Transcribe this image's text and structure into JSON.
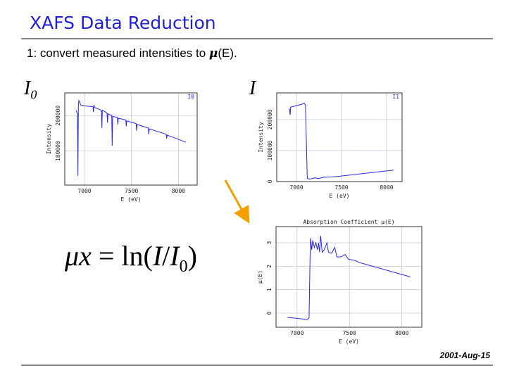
{
  "title": "XAFS Data Reduction",
  "subtitle": {
    "prefix": "1:  convert measured intensities to ",
    "mu": "μ",
    "suffix": "(E)."
  },
  "labels": {
    "i0_main": "I",
    "i0_sub": "0",
    "i": "I"
  },
  "equation": {
    "lhs": "μx",
    "eq": " = ln(",
    "i": "I",
    "slash": "/",
    "i0": "I",
    "i0_sub": "0",
    "close": ")"
  },
  "date": "2001-Aug-15",
  "colors": {
    "title": "#1f1fd6",
    "curve": "#2828e6",
    "arrow": "#f5a000",
    "grid": "#c8c8dc"
  },
  "chart_data": [
    {
      "type": "line",
      "title": "",
      "corner_label": "I0",
      "xlabel": "E (eV)",
      "ylabel": "Intensity",
      "xlim": [
        6790,
        8200
      ],
      "ylim": [
        160800,
        212800
      ],
      "xticks": [
        7000,
        7500,
        8000
      ],
      "yticks": [
        180000,
        200000
      ],
      "grid": true,
      "points": [
        [
          6910,
          203000
        ],
        [
          6925,
          201000
        ],
        [
          6930,
          166000
        ],
        [
          6935,
          206000
        ],
        [
          6940,
          208500
        ],
        [
          6960,
          206000
        ],
        [
          7000,
          205500
        ],
        [
          7090,
          205000
        ],
        [
          7095,
          202000
        ],
        [
          7100,
          206000
        ],
        [
          7110,
          204500
        ],
        [
          7180,
          203000
        ],
        [
          7185,
          193000
        ],
        [
          7190,
          203000
        ],
        [
          7240,
          201500
        ],
        [
          7245,
          196000
        ],
        [
          7250,
          201000
        ],
        [
          7290,
          200000
        ],
        [
          7295,
          183000
        ],
        [
          7300,
          199500
        ],
        [
          7350,
          199000
        ],
        [
          7355,
          195000
        ],
        [
          7360,
          198500
        ],
        [
          7440,
          197500
        ],
        [
          7445,
          194000
        ],
        [
          7450,
          197000
        ],
        [
          7550,
          195500
        ],
        [
          7555,
          191500
        ],
        [
          7560,
          195000
        ],
        [
          7680,
          193000
        ],
        [
          7685,
          189500
        ],
        [
          7690,
          192500
        ],
        [
          7870,
          189500
        ],
        [
          7875,
          187000
        ],
        [
          7880,
          189000
        ],
        [
          8080,
          185000
        ]
      ]
    },
    {
      "type": "line",
      "title": "",
      "corner_label": "I1",
      "xlabel": "E (eV)",
      "ylabel": "Intensity",
      "xlim": [
        6781,
        8172
      ],
      "ylim": [
        0,
        286000
      ],
      "xticks": [
        7000,
        7500,
        8000
      ],
      "yticks": [
        0,
        100000,
        200000
      ],
      "grid": true,
      "points": [
        [
          6920,
          236000
        ],
        [
          6930,
          215000
        ],
        [
          6935,
          240000
        ],
        [
          7090,
          252000
        ],
        [
          7100,
          245000
        ],
        [
          7120,
          10000
        ],
        [
          7150,
          8000
        ],
        [
          7200,
          12000
        ],
        [
          7250,
          10000
        ],
        [
          7300,
          14000
        ],
        [
          7400,
          15000
        ],
        [
          7500,
          18000
        ],
        [
          8080,
          37000
        ]
      ]
    },
    {
      "type": "line",
      "title": "Absorption Coefficient μ(E)",
      "xlabel": "E (eV)",
      "ylabel": "μ(E)",
      "xlim": [
        6800,
        8190
      ],
      "ylim": [
        -0.6,
        3.69
      ],
      "xticks": [
        7000,
        7500,
        8000
      ],
      "yticks": [
        0,
        1,
        2,
        3
      ],
      "grid": true,
      "points": [
        [
          6910,
          -0.18
        ],
        [
          7100,
          -0.27
        ],
        [
          7115,
          -0.2
        ],
        [
          7125,
          2.5
        ],
        [
          7130,
          3.2
        ],
        [
          7140,
          2.7
        ],
        [
          7150,
          3.1
        ],
        [
          7165,
          2.8
        ],
        [
          7180,
          3.0
        ],
        [
          7195,
          2.7
        ],
        [
          7205,
          3.0
        ],
        [
          7215,
          2.6
        ],
        [
          7225,
          3.3
        ],
        [
          7240,
          2.6
        ],
        [
          7260,
          2.7
        ],
        [
          7285,
          3.0
        ],
        [
          7300,
          2.6
        ],
        [
          7330,
          2.55
        ],
        [
          7360,
          2.8
        ],
        [
          7380,
          2.4
        ],
        [
          7420,
          2.4
        ],
        [
          7460,
          2.5
        ],
        [
          7490,
          2.3
        ],
        [
          7550,
          2.25
        ],
        [
          7600,
          2.15
        ],
        [
          7680,
          2.05
        ],
        [
          8080,
          1.55
        ]
      ]
    }
  ]
}
